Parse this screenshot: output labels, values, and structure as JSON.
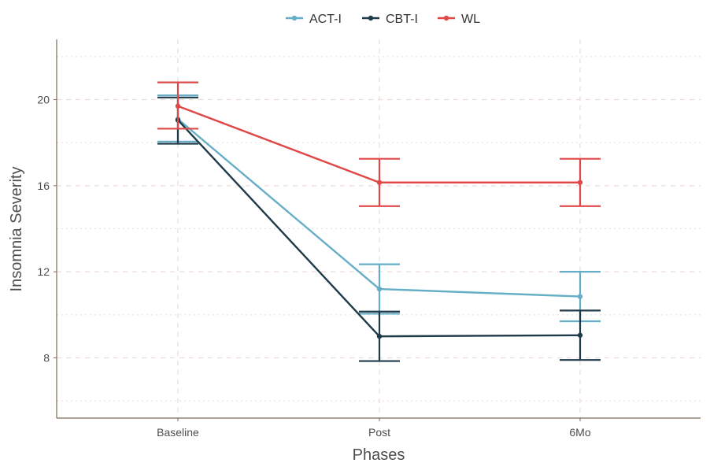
{
  "chart_data": {
    "type": "line",
    "xlabel": "Phases",
    "ylabel": "Insomnia Severity",
    "categories": [
      "Baseline",
      "Post",
      "6Mo"
    ],
    "ylim": [
      5.2,
      22.8
    ],
    "y_ticks": [
      8,
      12,
      16,
      20
    ],
    "y_tick_labels": [
      "8",
      "12",
      "16",
      "20"
    ],
    "grid": true,
    "legend_position": "top",
    "error_bars": true,
    "series": [
      {
        "name": "ACT-I",
        "color": "#65aec6",
        "values": [
          19.1,
          11.2,
          10.85
        ],
        "lower": [
          18.05,
          10.05,
          9.7
        ],
        "upper": [
          20.2,
          12.35,
          12.0
        ]
      },
      {
        "name": "CBT-I",
        "color": "#1f3a48",
        "values": [
          19.05,
          9.0,
          9.05
        ],
        "lower": [
          17.95,
          7.85,
          7.9
        ],
        "upper": [
          20.1,
          10.15,
          10.2
        ]
      },
      {
        "name": "WL",
        "color": "#e04848",
        "values": [
          19.7,
          16.15,
          16.15
        ],
        "lower": [
          18.65,
          15.05,
          15.05
        ],
        "upper": [
          20.8,
          17.25,
          17.25
        ]
      }
    ]
  }
}
